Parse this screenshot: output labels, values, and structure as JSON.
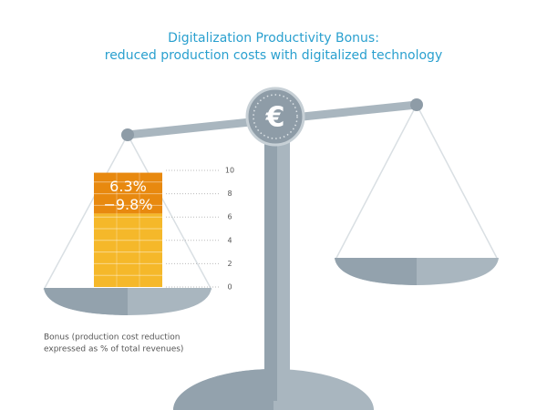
{
  "chart_data": {
    "type": "range",
    "title": "Digitalization Productivity Bonus:",
    "subtitle": "reduced production costs with digitalized technology",
    "low": 6.3,
    "high": 9.8,
    "value_labels": [
      "6.3%",
      "−9.8%"
    ],
    "colors": [
      "#f5b82a",
      "#e8890f"
    ],
    "ylim": [
      0,
      10
    ],
    "yticks": [
      0,
      2,
      4,
      6,
      8,
      10
    ],
    "caption": [
      "Bonus (production cost reduction",
      "expressed as % of total revenues)"
    ]
  }
}
